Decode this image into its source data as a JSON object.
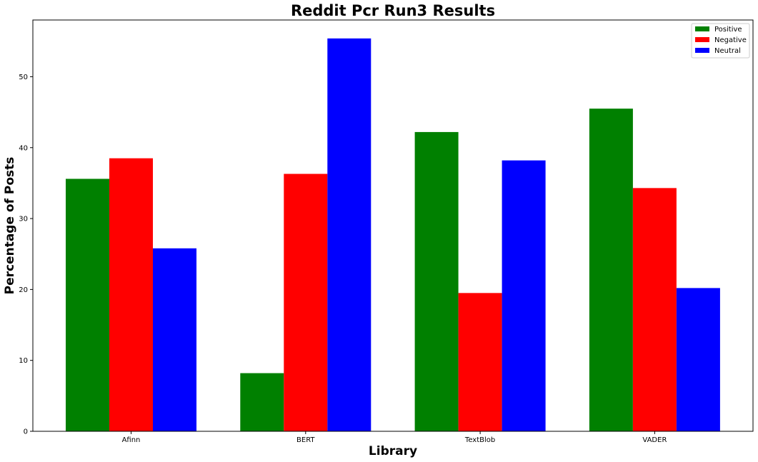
{
  "chart_data": {
    "type": "bar",
    "title": "Reddit Pcr Run3 Results",
    "xlabel": "Library",
    "ylabel": "Percentage of Posts",
    "categories": [
      "Afinn",
      "BERT",
      "TextBlob",
      "VADER"
    ],
    "series": [
      {
        "name": "Positive",
        "color": "#008000",
        "values": [
          35.6,
          8.2,
          42.2,
          45.5
        ]
      },
      {
        "name": "Negative",
        "color": "#ff0000",
        "values": [
          38.5,
          36.3,
          19.5,
          34.3
        ]
      },
      {
        "name": "Neutral",
        "color": "#0000ff",
        "values": [
          25.8,
          55.4,
          38.2,
          20.2
        ]
      }
    ],
    "yticks": [
      0,
      10,
      20,
      30,
      40,
      50
    ],
    "ylim": [
      0,
      58
    ],
    "grid": false,
    "legend_position": "top-right"
  }
}
